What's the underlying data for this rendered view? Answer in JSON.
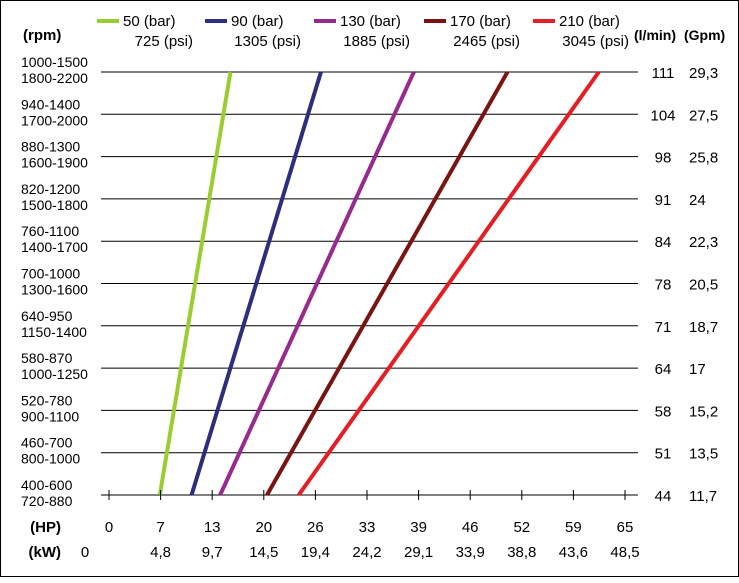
{
  "chart_data": {
    "type": "line",
    "y_left_header": "(rpm)",
    "y_right_headers": [
      "(l/min)",
      "(Gpm)"
    ],
    "x_axis_hp": {
      "label": "(HP)",
      "ticks": [
        "0",
        "7",
        "13",
        "20",
        "26",
        "33",
        "39",
        "46",
        "52",
        "59",
        "65"
      ],
      "range": [
        0,
        65
      ]
    },
    "x_axis_kw": {
      "label": "(kW)",
      "ticks": [
        "0",
        "4,8",
        "9,7",
        "14,5",
        "19,4",
        "24,2",
        "29,1",
        "33,9",
        "38,8",
        "43,6",
        "48,5"
      ]
    },
    "rows": [
      {
        "rpm_a": "400-600",
        "rpm_b": "720-880",
        "lpm": "44",
        "gpm": "11,7"
      },
      {
        "rpm_a": "460-700",
        "rpm_b": "800-1000",
        "lpm": "51",
        "gpm": "13,5"
      },
      {
        "rpm_a": "520-780",
        "rpm_b": "900-1100",
        "lpm": "58",
        "gpm": "15,2"
      },
      {
        "rpm_a": "580-870",
        "rpm_b": "1000-1250",
        "lpm": "64",
        "gpm": "17"
      },
      {
        "rpm_a": "640-950",
        "rpm_b": "1150-1400",
        "lpm": "71",
        "gpm": "18,7"
      },
      {
        "rpm_a": "700-1000",
        "rpm_b": "1300-1600",
        "lpm": "78",
        "gpm": "20,5"
      },
      {
        "rpm_a": "760-1100",
        "rpm_b": "1400-1700",
        "lpm": "84",
        "gpm": "22,3"
      },
      {
        "rpm_a": "820-1200",
        "rpm_b": "1500-1800",
        "lpm": "91",
        "gpm": "24"
      },
      {
        "rpm_a": "880-1300",
        "rpm_b": "1600-1900",
        "lpm": "98",
        "gpm": "25,8"
      },
      {
        "rpm_a": "940-1400",
        "rpm_b": "1700-2000",
        "lpm": "104",
        "gpm": "27,5"
      },
      {
        "rpm_a": "1000-1500",
        "rpm_b": "1800-2200",
        "lpm": "111",
        "gpm": "29,3"
      }
    ],
    "series": [
      {
        "bar": "50 (bar)",
        "psi": "725 (psi)",
        "color": "#9acd32",
        "hp_start": 6.4,
        "hp_end": 15.3
      },
      {
        "bar": "90 (bar)",
        "psi": "1305 (psi)",
        "color": "#2b2f7d",
        "hp_start": 10.4,
        "hp_end": 26.7
      },
      {
        "bar": "130 (bar)",
        "psi": "1885 (psi)",
        "color": "#962a8f",
        "hp_start": 14.0,
        "hp_end": 38.4
      },
      {
        "bar": "170 (bar)",
        "psi": "2465 (psi)",
        "color": "#7a1410",
        "hp_start": 19.9,
        "hp_end": 50.2
      },
      {
        "bar": "210 (bar)",
        "psi": "3045 (psi)",
        "color": "#e31e24",
        "hp_start": 23.9,
        "hp_end": 61.7
      }
    ],
    "grid": true
  }
}
